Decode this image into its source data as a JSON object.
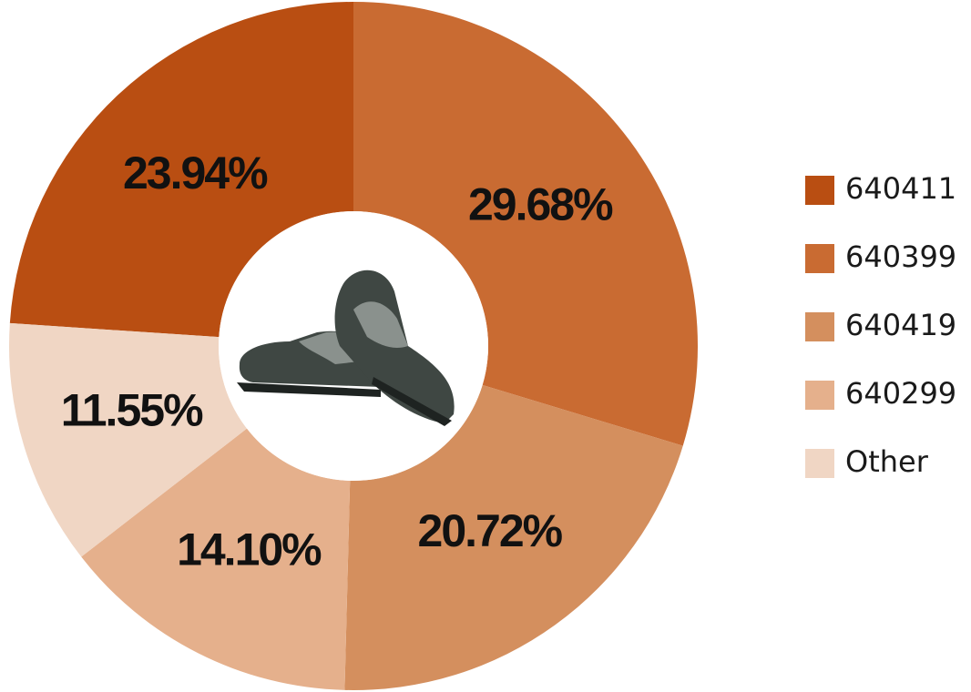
{
  "chart_data": {
    "type": "pie",
    "categories": [
      "640411",
      "640399",
      "640419",
      "640299",
      "Other"
    ],
    "values": [
      23.94,
      29.68,
      20.72,
      14.1,
      11.55
    ],
    "value_labels": [
      "23.94%",
      "29.68%",
      "20.72%",
      "14.10%",
      "11.55%"
    ],
    "colors": [
      "#b94e12",
      "#c96b32",
      "#d48f5e",
      "#e5b08c",
      "#f0d6c4"
    ],
    "legend": "right"
  }
}
